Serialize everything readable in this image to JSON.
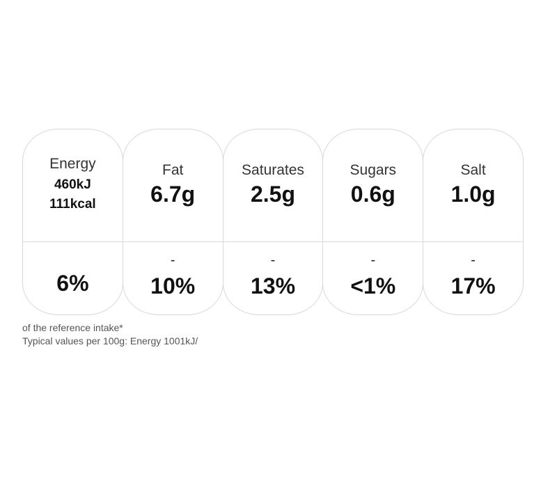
{
  "energy": {
    "label": "Energy",
    "kj": "460kJ",
    "kcal": "111kcal",
    "percent": "6%"
  },
  "nutrients": [
    {
      "label": "Fat",
      "amount": "6.7g",
      "dash": "-",
      "percent": "10%"
    },
    {
      "label": "Saturates",
      "amount": "2.5g",
      "dash": "-",
      "percent": "13%"
    },
    {
      "label": "Sugars",
      "amount": "0.6g",
      "dash": "-",
      "percent": "<1%"
    },
    {
      "label": "Salt",
      "amount": "1.0g",
      "dash": "-",
      "percent": "17%"
    }
  ],
  "footer": {
    "reference_note": "of the reference intake*",
    "typical_values": "Typical values per 100g: Energy 1001kJ/"
  },
  "colors": {
    "border": "#d8d8d8",
    "text_dark": "#111111",
    "text_footer": "#555555"
  }
}
